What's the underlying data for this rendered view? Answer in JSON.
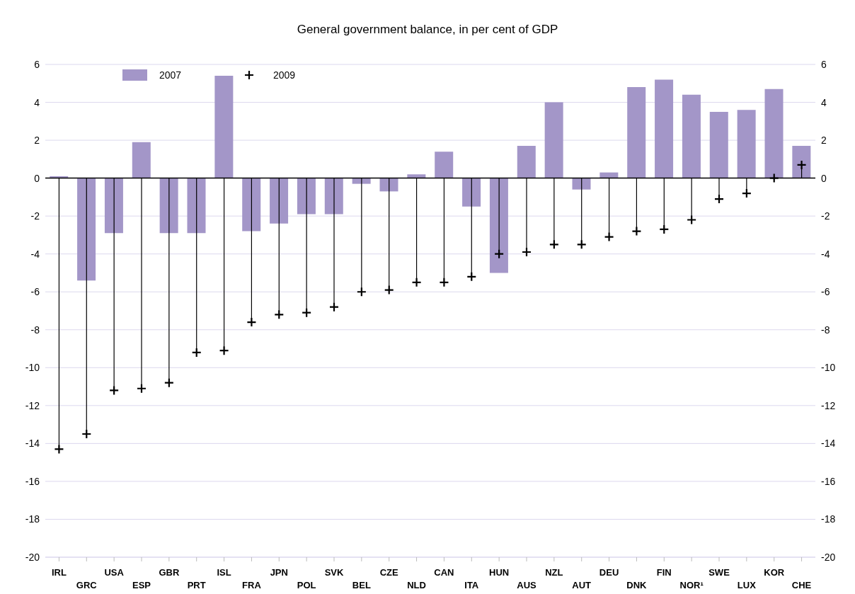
{
  "chart_data": {
    "type": "bar",
    "title": "General government balance, in per cent of GDP",
    "categories": [
      "IRL",
      "GRC",
      "USA",
      "ESP",
      "GBR",
      "PRT",
      "ISL",
      "FRA",
      "JPN",
      "POL",
      "SVK",
      "BEL",
      "CZE",
      "NLD",
      "CAN",
      "ITA",
      "HUN",
      "AUS",
      "NZL",
      "AUT",
      "DEU",
      "DNK",
      "FIN",
      "NOR¹",
      "SWE",
      "LUX",
      "KOR",
      "CHE"
    ],
    "series": [
      {
        "name": "2007",
        "color": "#a396c8",
        "values": [
          0.1,
          -5.4,
          -2.9,
          1.9,
          -2.9,
          -2.9,
          5.4,
          -2.8,
          -2.4,
          -1.9,
          -1.9,
          -0.3,
          -0.7,
          0.2,
          1.4,
          -1.5,
          -5.0,
          1.7,
          4.0,
          -0.6,
          0.3,
          4.8,
          5.2,
          4.4,
          3.5,
          3.6,
          4.7,
          1.7
        ]
      },
      {
        "name": "2009",
        "type": "lollipop",
        "marker": "cross",
        "color": "#000000",
        "values": [
          -14.3,
          -13.5,
          -11.2,
          -11.1,
          -10.8,
          -9.2,
          -9.1,
          -7.6,
          -7.2,
          -7.1,
          -6.8,
          -6.0,
          -5.9,
          -5.5,
          -5.5,
          -5.2,
          -4.0,
          -3.9,
          -3.5,
          -3.5,
          -3.1,
          -2.8,
          -2.7,
          -2.2,
          -1.1,
          -0.8,
          0.0,
          0.7
        ]
      }
    ],
    "ylim": [
      -20,
      6
    ],
    "yticks": [
      -20,
      -18,
      -16,
      -14,
      -12,
      -10,
      -8,
      -6,
      -4,
      -2,
      0,
      2,
      4,
      6
    ],
    "y2lim": [
      -20,
      6
    ],
    "y2ticks": [
      -20,
      -18,
      -16,
      -14,
      -12,
      -10,
      -8,
      -6,
      -4,
      -2,
      0,
      2,
      4,
      6
    ],
    "ref_lines": [
      {
        "axis": "y",
        "value": 0,
        "color": "#000000"
      }
    ],
    "grid": "y",
    "legend": "top left"
  }
}
